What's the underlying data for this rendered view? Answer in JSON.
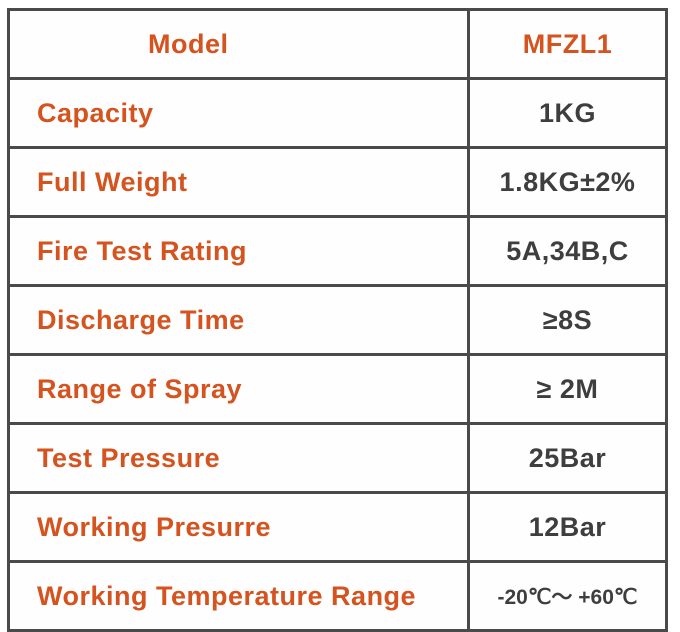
{
  "table": {
    "colors": {
      "label_text": "#d4531e",
      "value_text": "#3e3e3e",
      "border": "#4a4a4a",
      "background": "#ffffff"
    },
    "rows": [
      {
        "label": "Model",
        "value": "MFZL1"
      },
      {
        "label": "Capacity",
        "value": "1KG"
      },
      {
        "label": "Full Weight",
        "value": "1.8KG±2%"
      },
      {
        "label": "Fire Test Rating",
        "value": "5A,34B,C"
      },
      {
        "label": "Discharge Time",
        "value": "≥8S"
      },
      {
        "label": "Range of Spray",
        "value": "≥ 2M"
      },
      {
        "label": "Test Pressure",
        "value": "25Bar"
      },
      {
        "label": "Working Presurre",
        "value": "12Bar"
      },
      {
        "label": "Working Temperature Range",
        "value": "-20℃～ +60℃"
      }
    ]
  }
}
